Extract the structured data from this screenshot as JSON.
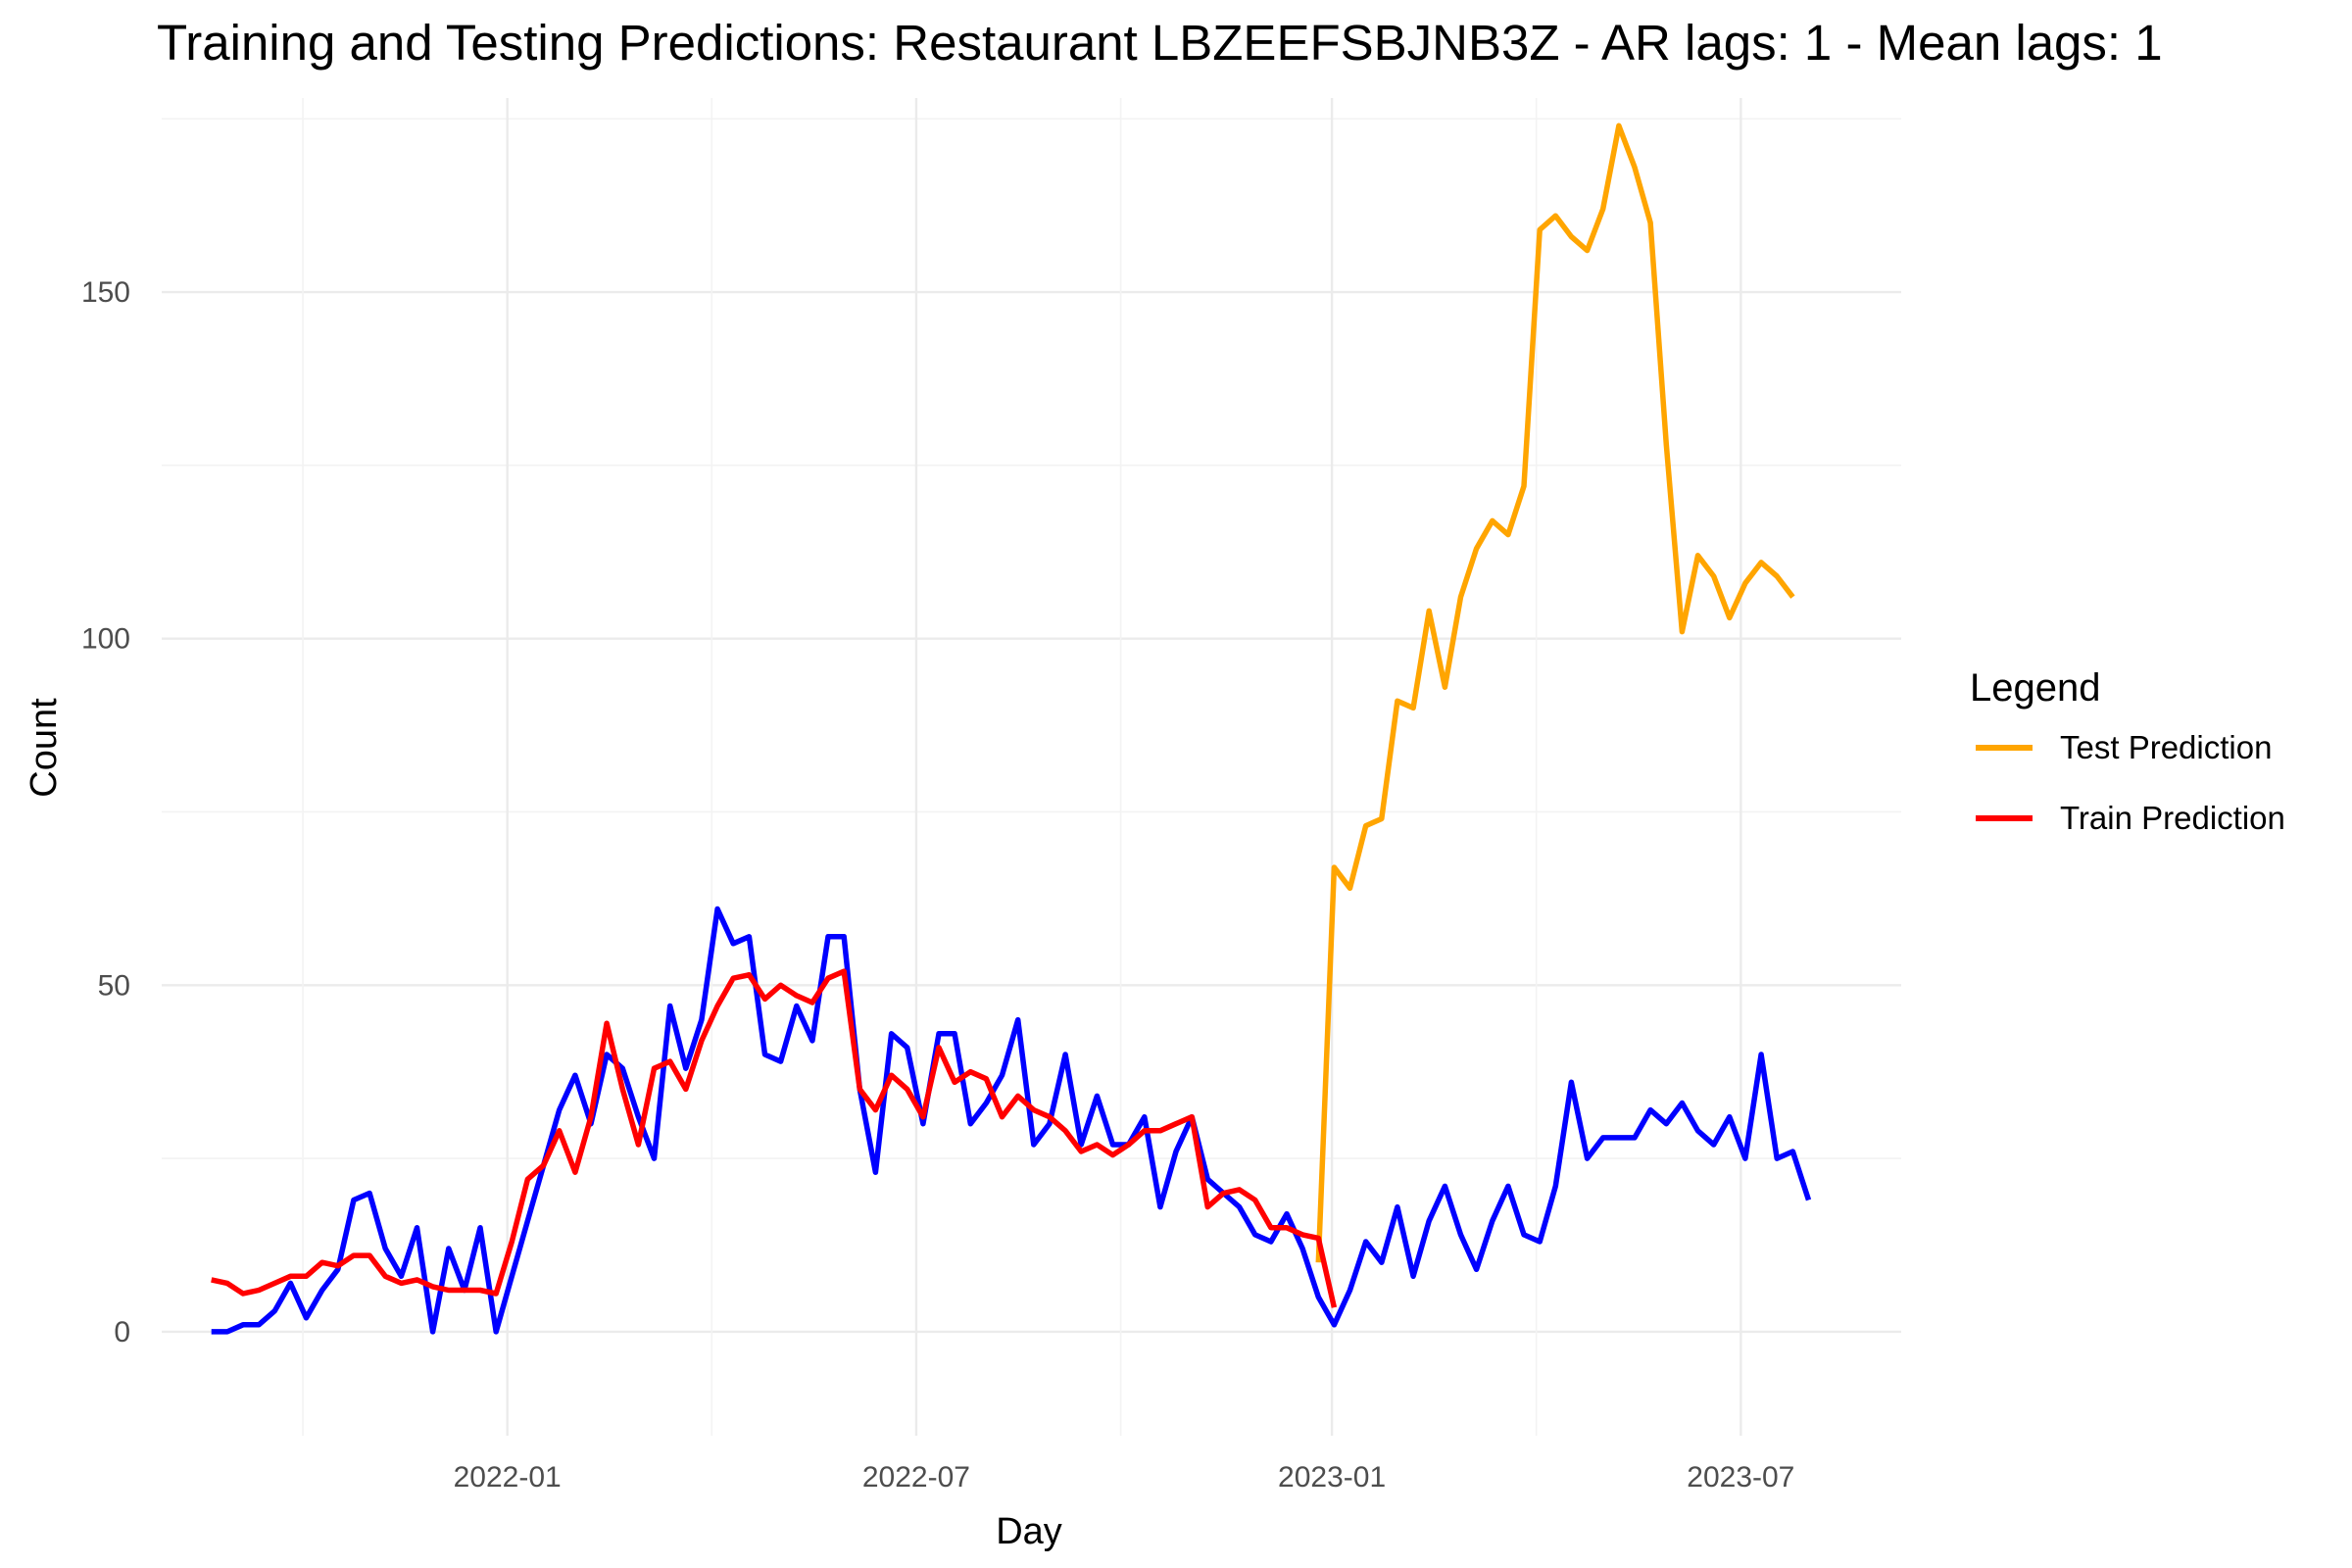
{
  "chart_data": {
    "type": "line",
    "title": "Training and Testing Predictions: Restaurant LBZEEFSBJNB3Z - AR lags: 1 - Mean lags: 1",
    "xlabel": "Day",
    "ylabel": "Count",
    "ylim": [
      -15,
      178
    ],
    "xlim": [
      "2021-08-01",
      "2023-09-10"
    ],
    "x_ticks": [
      {
        "date": "2022-01-01",
        "label": "2022-01"
      },
      {
        "date": "2022-07-01",
        "label": "2022-07"
      },
      {
        "date": "2023-01-01",
        "label": "2023-01"
      },
      {
        "date": "2023-07-01",
        "label": "2023-07"
      }
    ],
    "y_ticks": [
      0,
      50,
      100,
      150
    ],
    "legend": {
      "title": "Legend",
      "position": "right",
      "entries": [
        {
          "label": "Test Prediction",
          "color": "#ffa500"
        },
        {
          "label": "Train Prediction",
          "color": "#ff0000"
        }
      ]
    },
    "series": [
      {
        "name": "Actual",
        "color": "#0000ff",
        "in_legend": false,
        "start_date": "2021-08-23",
        "interval_days": 7,
        "values": [
          0,
          0,
          1,
          1,
          3,
          7,
          2,
          6,
          9,
          19,
          20,
          12,
          8,
          15,
          0,
          12,
          6,
          15,
          0,
          8,
          16,
          24,
          32,
          37,
          30,
          40,
          38,
          31,
          25,
          47,
          38,
          45,
          61,
          56,
          57,
          40,
          39,
          47,
          42,
          57,
          57,
          35,
          23,
          43,
          41,
          30,
          43,
          43,
          30,
          33,
          37,
          45,
          27,
          30,
          40,
          27,
          34,
          27,
          27,
          31,
          18,
          26,
          31,
          22,
          20,
          18,
          14,
          13,
          17,
          12,
          5,
          1,
          6,
          13,
          10,
          18,
          8,
          16,
          21,
          14,
          9,
          16,
          21,
          14,
          13,
          21,
          36,
          25,
          28,
          28,
          28,
          32,
          30,
          33,
          29,
          27,
          31,
          25,
          40,
          25,
          26,
          19
        ]
      },
      {
        "name": "Train Prediction",
        "color": "#ff0000",
        "in_legend": true,
        "start_date": "2021-08-23",
        "interval_days": 7,
        "values": [
          7.5,
          7,
          5.5,
          6,
          7,
          8,
          8,
          10,
          9.5,
          11,
          11,
          8,
          7,
          7.5,
          6.5,
          6,
          6,
          6,
          5.5,
          13,
          22,
          24,
          29,
          23,
          31,
          44.5,
          35,
          27,
          38,
          39,
          35,
          42,
          47,
          51,
          51.5,
          48,
          50,
          48.5,
          47.5,
          51,
          52,
          35,
          32,
          37,
          35,
          31,
          41,
          36,
          37.5,
          36.5,
          31,
          34,
          32,
          31,
          29,
          26,
          27,
          25.5,
          27,
          29,
          29,
          30,
          31,
          18,
          20,
          20.5,
          19,
          15,
          15,
          14,
          13.5,
          3.5
        ]
      },
      {
        "name": "Test Prediction",
        "color": "#ffa500",
        "in_legend": true,
        "start_date": "2022-12-26",
        "interval_days": 7,
        "values": [
          10,
          67,
          64,
          73,
          74,
          91,
          90,
          104,
          93,
          106,
          113,
          117,
          115,
          122,
          159,
          161,
          158,
          156,
          162,
          174,
          168,
          160,
          128,
          101,
          112,
          109,
          103,
          108,
          111,
          109,
          106
        ]
      }
    ]
  }
}
